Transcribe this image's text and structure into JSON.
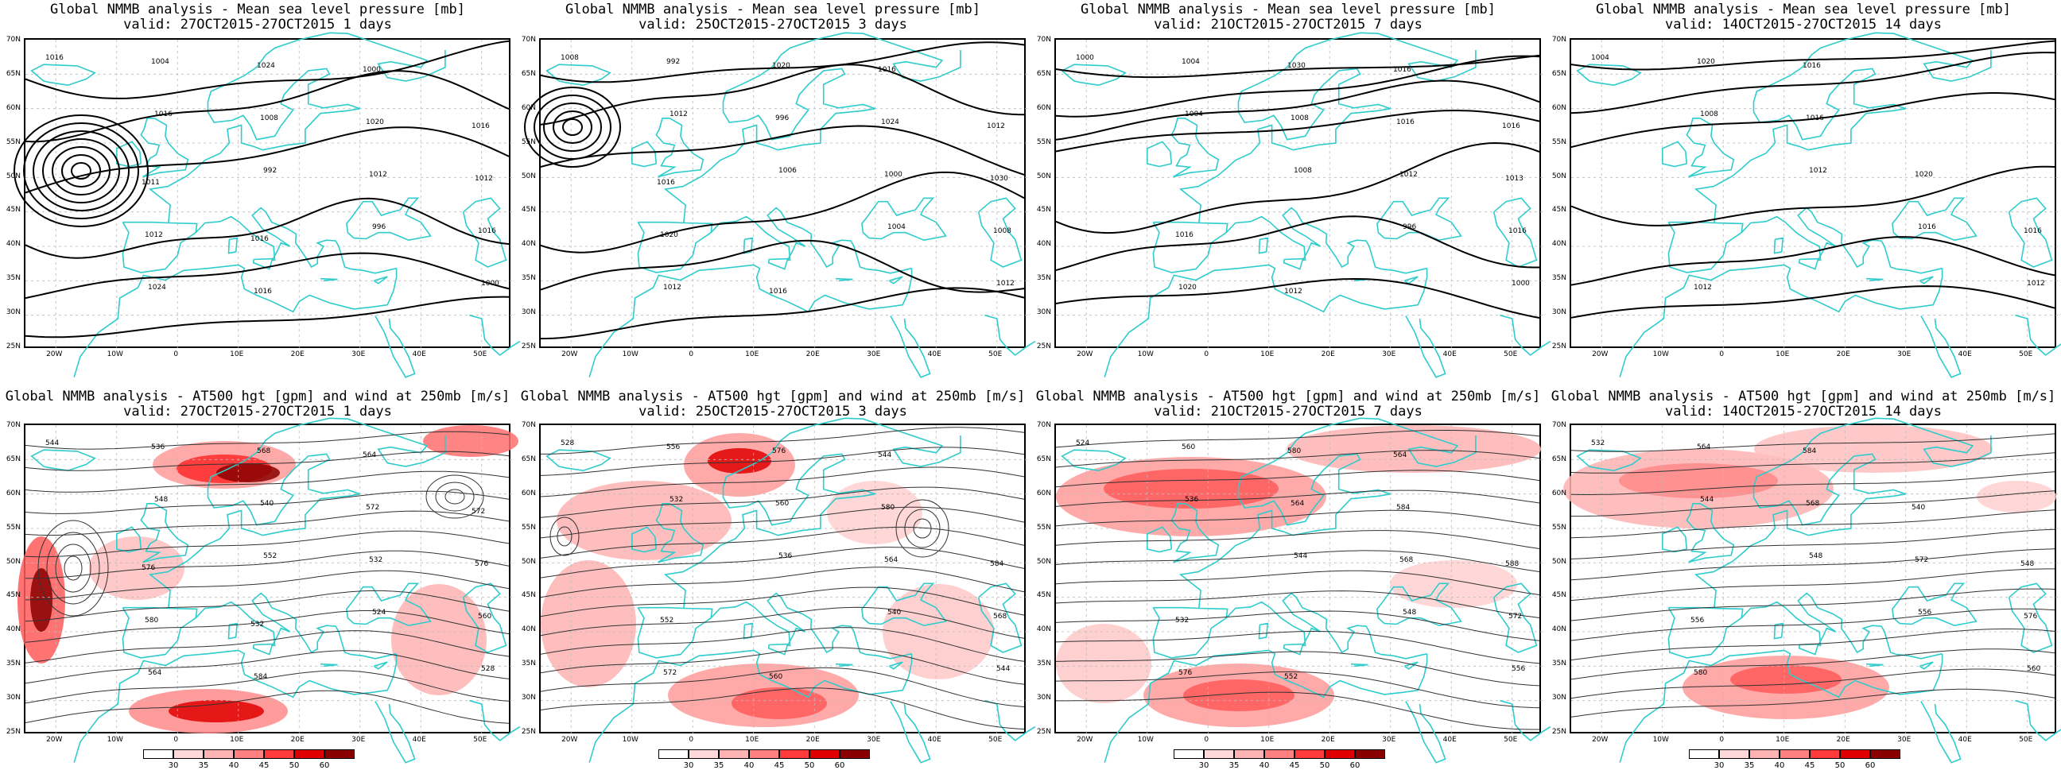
{
  "top_titles": [
    {
      "line1": "Global NMMB analysis - Mean sea level pressure [mb]",
      "line2": "valid: 27OCT2015-27OCT2015  1 days"
    },
    {
      "line1": "Global NMMB analysis - Mean sea level pressure [mb]",
      "line2": "valid: 25OCT2015-27OCT2015  3 days"
    },
    {
      "line1": "Global NMMB analysis - Mean sea level pressure [mb]",
      "line2": "valid: 21OCT2015-27OCT2015  7 days"
    },
    {
      "line1": "Global NMMB analysis - Mean sea level pressure [mb]",
      "line2": "valid: 14OCT2015-27OCT2015  14 days"
    }
  ],
  "bottom_titles": [
    {
      "line1": "Global NMMB analysis - AT500 hgt [gpm] and wind at 250mb [m/s]",
      "line2": "valid: 27OCT2015-27OCT2015  1 days"
    },
    {
      "line1": "Global NMMB analysis - AT500 hgt [gpm] and wind at 250mb [m/s]",
      "line2": "valid: 25OCT2015-27OCT2015  3 days"
    },
    {
      "line1": "Global NMMB analysis - AT500 hgt [gpm] and wind at 250mb [m/s]",
      "line2": "valid: 21OCT2015-27OCT2015  7 days"
    },
    {
      "line1": "Global NMMB analysis - AT500 hgt [gpm] and wind at 250mb [m/s]",
      "line2": "valid: 14OCT2015-27OCT2015  14 days"
    }
  ],
  "lat_labels": [
    "70N",
    "65N",
    "60N",
    "55N",
    "50N",
    "45N",
    "40N",
    "35N",
    "30N",
    "25N"
  ],
  "lon_labels": [
    "20W",
    "10W",
    "0",
    "10E",
    "20E",
    "30E",
    "40E",
    "50E"
  ],
  "colorbar": {
    "labels": [
      "30",
      "35",
      "40",
      "45",
      "50",
      "60"
    ],
    "colors": [
      "#ffffff",
      "#ffd9d9",
      "#ffb3b3",
      "#ff8080",
      "#ff3a3a",
      "#e00000",
      "#8a0000"
    ]
  },
  "colors": {
    "coast": "#2ecccc",
    "contour": "#000000",
    "grid": "#bbbbbb",
    "wind": "#ff5a5a"
  },
  "contour_labels": {
    "top": [
      [
        "1016",
        "1016",
        "992",
        "996",
        "1000",
        "1004",
        "1008",
        "1012",
        "1016",
        "1024",
        "1024",
        "1020",
        "1012",
        "1012",
        "1016",
        "1000",
        "1016",
        "1011",
        "1016"
      ],
      [
        "1008",
        "1012",
        "1006",
        "1004",
        "1012",
        "992",
        "996",
        "1000",
        "1008",
        "1012",
        "1020",
        "1024",
        "1030",
        "1020",
        "1016",
        "1016",
        "1012",
        "1016"
      ],
      [
        "1000",
        "1004",
        "1008",
        "996",
        "1000",
        "1004",
        "1008",
        "1012",
        "1016",
        "1020",
        "1030",
        "1016",
        "1013",
        "1016",
        "1012",
        "1016",
        "1016"
      ],
      [
        "1004",
        "1008",
        "1012",
        "1016",
        "1012",
        "1020",
        "1016",
        "1020",
        "1016",
        "1012",
        "1016"
      ]
    ],
    "bottom": [
      [
        "544",
        "548",
        "552",
        "524",
        "528",
        "536",
        "540",
        "532",
        "560",
        "564",
        "568",
        "572",
        "576",
        "580",
        "584",
        "564",
        "572",
        "576",
        "532"
      ],
      [
        "528",
        "532",
        "536",
        "540",
        "544",
        "556",
        "560",
        "564",
        "568",
        "572",
        "576",
        "580",
        "584",
        "552",
        "560",
        "544"
      ],
      [
        "524",
        "536",
        "544",
        "548",
        "556",
        "560",
        "564",
        "568",
        "572",
        "576",
        "580",
        "584",
        "588",
        "532",
        "552",
        "564"
      ],
      [
        "532",
        "544",
        "548",
        "556",
        "560",
        "564",
        "568",
        "572",
        "576",
        "580",
        "584",
        "540",
        "548",
        "556"
      ]
    ]
  }
}
